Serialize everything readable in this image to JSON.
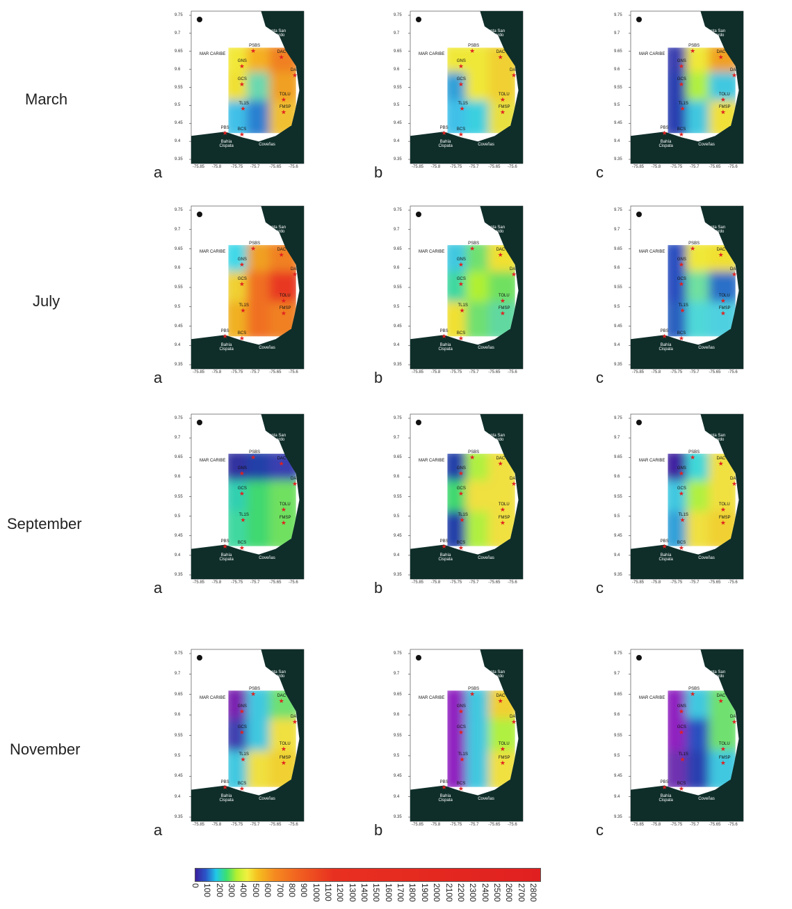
{
  "rows": [
    {
      "month": "March",
      "panels": [
        {
          "letter": "a",
          "field": [
            [
              "#f2e838",
              "#f5b020",
              "#f08020"
            ],
            [
              "#f0e030",
              "#6ad8b0",
              "#f0a020"
            ],
            [
              "#40c0e8",
              "#2a7fd0",
              "#f0c030"
            ]
          ]
        },
        {
          "letter": "b",
          "field": [
            [
              "#f0e838",
              "#f0e838",
              "#f0d030"
            ],
            [
              "#30a0d8",
              "#f0e838",
              "#f0d030"
            ],
            [
              "#40c0e8",
              "#3ad0e0",
              "#e8e040"
            ]
          ]
        },
        {
          "letter": "c",
          "field": [
            [
              "#3a3fb0",
              "#f0e838",
              "#f0a020"
            ],
            [
              "#2a40b0",
              "#b0f040",
              "#40c8e0"
            ],
            [
              "#2a40b0",
              "#40c8e0",
              "#f0e038"
            ]
          ]
        }
      ]
    },
    {
      "month": "July",
      "panels": [
        {
          "letter": "a",
          "field": [
            [
              "#40d8e8",
              "#f0a020",
              "#f08020"
            ],
            [
              "#f0d030",
              "#f07020",
              "#e83820"
            ],
            [
              "#f0b020",
              "#f07020",
              "#f08020"
            ]
          ]
        },
        {
          "letter": "b",
          "field": [
            [
              "#40c8e0",
              "#70e070",
              "#f0e030"
            ],
            [
              "#40d8a0",
              "#b0f030",
              "#70e060"
            ],
            [
              "#f0e030",
              "#70e070",
              "#60d8a0"
            ]
          ]
        },
        {
          "letter": "c",
          "field": [
            [
              "#2a50c0",
              "#f0e838",
              "#f0e030"
            ],
            [
              "#2a50c0",
              "#70e0a0",
              "#2a70c8"
            ],
            [
              "#2a60c0",
              "#50d8d8",
              "#50d0e0"
            ]
          ]
        }
      ]
    },
    {
      "month": "September",
      "panels": [
        {
          "letter": "a",
          "field": [
            [
              "#3030a0",
              "#203fa8",
              "#3a3fb0"
            ],
            [
              "#30d0b0",
              "#40d870",
              "#70e060"
            ],
            [
              "#40d8a0",
              "#40d870",
              "#70e060"
            ]
          ]
        },
        {
          "letter": "b",
          "field": [
            [
              "#2040a8",
              "#b0f040",
              "#f0e040"
            ],
            [
              "#40d870",
              "#f0e040",
              "#f0e040"
            ],
            [
              "#2040a8",
              "#b0f040",
              "#f0e040"
            ]
          ]
        },
        {
          "letter": "c",
          "field": [
            [
              "#4020a0",
              "#40d8d8",
              "#f0e040"
            ],
            [
              "#40c8e0",
              "#b0f040",
              "#f0e040"
            ],
            [
              "#30a0d8",
              "#f0e040",
              "#f0d030"
            ]
          ]
        }
      ]
    },
    {
      "month": "November",
      "panels": [
        {
          "letter": "a",
          "field": [
            [
              "#7a20b0",
              "#40c8e0",
              "#70e070"
            ],
            [
              "#4040b0",
              "#40c8e0",
              "#f0e040"
            ],
            [
              "#40c8e0",
              "#f0e040",
              "#f0d030"
            ]
          ]
        },
        {
          "letter": "b",
          "field": [
            [
              "#9020c0",
              "#40c8e0",
              "#f0d030"
            ],
            [
              "#9020c0",
              "#40c8e0",
              "#b0f040"
            ],
            [
              "#9020c0",
              "#40c8e0",
              "#f0e040"
            ]
          ]
        },
        {
          "letter": "c",
          "field": [
            [
              "#9020c0",
              "#40c8e0",
              "#70e070"
            ],
            [
              "#9020c0",
              "#2a50c0",
              "#70e070"
            ],
            [
              "#7030b0",
              "#2a40b0",
              "#40c8e0"
            ]
          ]
        }
      ]
    }
  ],
  "map_labels": {
    "y_ticks": [
      "9.75",
      "9.7",
      "9.65",
      "9.6",
      "9.55",
      "9.5",
      "9.45",
      "9.4",
      "9.35"
    ],
    "x_ticks": [
      "-75.85",
      "-75.8",
      "-75.75",
      "-75.7",
      "-75.65",
      "-75.6"
    ],
    "sea": "MAR CARIBE",
    "cape": "Punta San Bernardo",
    "bay": "Bahía Cispata",
    "town": "Coveñas",
    "stations": [
      "PSBS",
      "DAC",
      "GNS",
      "GCS",
      "DA",
      "TOLU",
      "TL1S",
      "FMSP",
      "PBS",
      "BCS"
    ]
  },
  "colorbar": {
    "ticks": [
      "0",
      "100",
      "200",
      "300",
      "400",
      "500",
      "600",
      "700",
      "800",
      "900",
      "1000",
      "1100",
      "1200",
      "1300",
      "1400",
      "1500",
      "1600",
      "1700",
      "1800",
      "1900",
      "2000",
      "2100",
      "2200",
      "2300",
      "2400",
      "2500",
      "2600",
      "2700",
      "2800"
    ]
  },
  "colors": {
    "land": "#0f2e2a",
    "star": "#e02020"
  }
}
